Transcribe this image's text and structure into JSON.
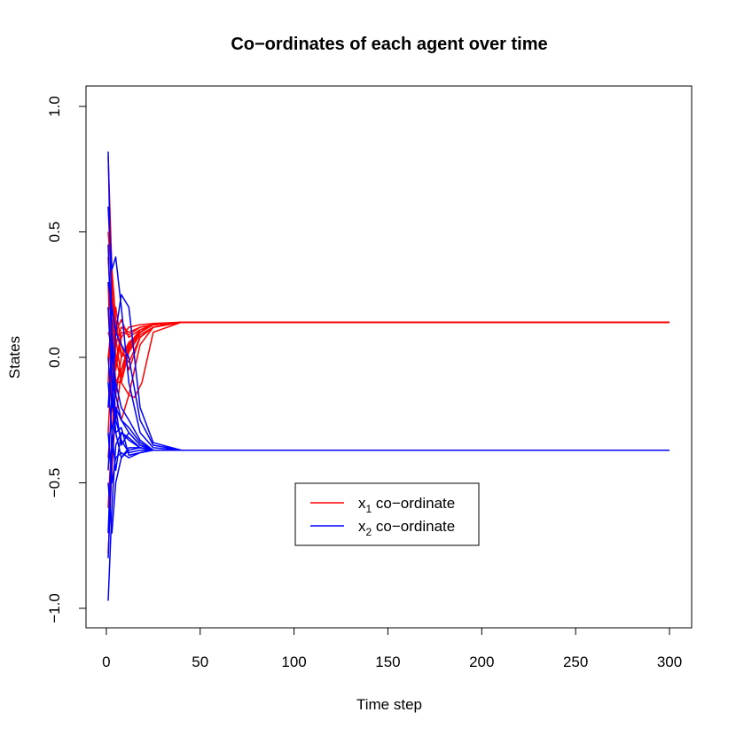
{
  "chart_data": {
    "type": "line",
    "title": "Co−ordinates of each agent over time",
    "xlabel": "Time step",
    "ylabel": "States",
    "xlim": [
      1,
      300
    ],
    "ylim": [
      -1.0,
      1.0
    ],
    "x_ticks": [
      0,
      50,
      100,
      150,
      200,
      250,
      300
    ],
    "x_tick_labels": [
      "0",
      "50",
      "100",
      "150",
      "200",
      "250",
      "300"
    ],
    "y_ticks": [
      -1.0,
      -0.5,
      0.0,
      0.5,
      1.0
    ],
    "y_tick_labels": [
      "−1.0",
      "−0.5",
      "0.0",
      "0.5",
      "1.0"
    ],
    "grid": false,
    "legend": {
      "position": "center-bottom",
      "entries": [
        {
          "label_main": "x",
          "label_sub": "1",
          "label_rest": " co−ordinate",
          "color": "#ff0000"
        },
        {
          "label_main": "x",
          "label_sub": "2",
          "label_rest": " co−ordinate",
          "color": "#0000ff"
        }
      ]
    },
    "series": [
      {
        "color": "#ff0000",
        "x": [
          1,
          3,
          5,
          8,
          12,
          18,
          25,
          40,
          300
        ],
        "y": [
          0.8,
          0.35,
          0.15,
          0.0,
          0.05,
          0.1,
          0.13,
          0.14,
          0.14
        ]
      },
      {
        "color": "#ff0000",
        "x": [
          1,
          3,
          5,
          8,
          12,
          18,
          25,
          40,
          300
        ],
        "y": [
          0.6,
          0.25,
          -0.05,
          0.08,
          0.12,
          0.13,
          0.135,
          0.14,
          0.14
        ]
      },
      {
        "color": "#ff0000",
        "x": [
          1,
          3,
          5,
          8,
          12,
          18,
          25,
          40,
          300
        ],
        "y": [
          0.4,
          0.1,
          0.2,
          0.05,
          -0.05,
          0.08,
          0.12,
          0.14,
          0.14
        ]
      },
      {
        "color": "#ff0000",
        "x": [
          1,
          3,
          5,
          8,
          12,
          18,
          25,
          40,
          300
        ],
        "y": [
          0.2,
          -0.1,
          0.05,
          0.12,
          0.1,
          0.12,
          0.13,
          0.14,
          0.14
        ]
      },
      {
        "color": "#ff0000",
        "x": [
          1,
          3,
          5,
          8,
          12,
          18,
          25,
          40,
          300
        ],
        "y": [
          0.0,
          0.15,
          -0.1,
          -0.05,
          0.03,
          0.1,
          0.13,
          0.14,
          0.14
        ]
      },
      {
        "color": "#ff0000",
        "x": [
          1,
          3,
          5,
          8,
          12,
          18,
          25,
          40,
          300
        ],
        "y": [
          -0.2,
          -0.05,
          0.1,
          0.15,
          0.08,
          0.11,
          0.13,
          0.14,
          0.14
        ]
      },
      {
        "color": "#ff0000",
        "x": [
          1,
          3,
          5,
          8,
          12,
          18,
          25,
          40,
          300
        ],
        "y": [
          -0.4,
          -0.2,
          -0.15,
          0.0,
          0.06,
          0.1,
          0.13,
          0.14,
          0.14
        ]
      },
      {
        "color": "#ff0000",
        "x": [
          1,
          3,
          5,
          8,
          12,
          18,
          25,
          40,
          300
        ],
        "y": [
          -0.6,
          -0.3,
          -0.1,
          -0.1,
          0.02,
          0.09,
          0.12,
          0.14,
          0.14
        ]
      },
      {
        "color": "#ff0000",
        "x": [
          1,
          3,
          5,
          8,
          12,
          18,
          25,
          40,
          300
        ],
        "y": [
          -0.78,
          -0.45,
          -0.2,
          -0.25,
          -0.15,
          0.05,
          0.12,
          0.14,
          0.14
        ]
      },
      {
        "color": "#ff0000",
        "x": [
          1,
          3,
          5,
          8,
          12,
          15,
          19,
          25,
          40,
          300
        ],
        "y": [
          0.5,
          0.3,
          0.0,
          -0.1,
          -0.15,
          -0.16,
          -0.1,
          0.1,
          0.14,
          0.14
        ]
      },
      {
        "color": "#ff0000",
        "x": [
          1,
          3,
          5,
          8,
          12,
          18,
          25,
          40,
          300
        ],
        "y": [
          0.3,
          -0.2,
          -0.25,
          -0.05,
          0.05,
          0.11,
          0.13,
          0.14,
          0.14
        ]
      },
      {
        "color": "#ff0000",
        "x": [
          1,
          3,
          5,
          8,
          12,
          18,
          25,
          40,
          300
        ],
        "y": [
          -0.1,
          0.25,
          0.12,
          0.02,
          -0.02,
          0.08,
          0.12,
          0.14,
          0.14
        ]
      },
      {
        "color": "#ff0000",
        "x": [
          1,
          3,
          5,
          8,
          12,
          18,
          25,
          40,
          300
        ],
        "y": [
          0.1,
          0.05,
          -0.02,
          0.1,
          0.09,
          0.12,
          0.13,
          0.14,
          0.14
        ]
      },
      {
        "color": "#ff0000",
        "x": [
          1,
          3,
          5,
          8,
          12,
          18,
          25,
          40,
          300
        ],
        "y": [
          -0.3,
          0.0,
          0.08,
          -0.08,
          0.04,
          0.1,
          0.13,
          0.14,
          0.14
        ]
      },
      {
        "color": "#0000ff",
        "x": [
          1,
          3,
          5,
          8,
          12,
          18,
          25,
          40,
          300
        ],
        "y": [
          0.82,
          0.1,
          -0.15,
          -0.25,
          -0.3,
          -0.35,
          -0.37,
          -0.37,
          -0.37
        ]
      },
      {
        "color": "#0000ff",
        "x": [
          1,
          3,
          5,
          8,
          12,
          18,
          25,
          40,
          300
        ],
        "y": [
          -0.97,
          -0.6,
          -0.35,
          -0.3,
          -0.33,
          -0.36,
          -0.37,
          -0.37,
          -0.37
        ]
      },
      {
        "color": "#0000ff",
        "x": [
          1,
          3,
          5,
          8,
          12,
          18,
          25,
          40,
          300
        ],
        "y": [
          -0.8,
          -0.4,
          -0.2,
          -0.25,
          -0.28,
          -0.34,
          -0.37,
          -0.37,
          -0.37
        ]
      },
      {
        "color": "#0000ff",
        "x": [
          1,
          3,
          5,
          8,
          12,
          18,
          25,
          40,
          300
        ],
        "y": [
          0.6,
          0.35,
          0.4,
          0.2,
          -0.1,
          -0.3,
          -0.36,
          -0.37,
          -0.37
        ]
      },
      {
        "color": "#0000ff",
        "x": [
          1,
          3,
          5,
          8,
          12,
          18,
          25,
          40,
          300
        ],
        "y": [
          0.3,
          0.2,
          0.1,
          0.05,
          0.0,
          -0.25,
          -0.35,
          -0.37,
          -0.37
        ]
      },
      {
        "color": "#0000ff",
        "x": [
          1,
          3,
          5,
          8,
          12,
          18,
          25,
          40,
          300
        ],
        "y": [
          0.0,
          -0.2,
          0.1,
          0.25,
          0.2,
          -0.2,
          -0.34,
          -0.37,
          -0.37
        ]
      },
      {
        "color": "#0000ff",
        "x": [
          1,
          3,
          5,
          8,
          12,
          18,
          25,
          40,
          300
        ],
        "y": [
          -0.3,
          -0.5,
          -0.4,
          -0.38,
          -0.4,
          -0.38,
          -0.37,
          -0.37,
          -0.37
        ]
      },
      {
        "color": "#0000ff",
        "x": [
          1,
          3,
          5,
          8,
          12,
          18,
          25,
          40,
          300
        ],
        "y": [
          -0.5,
          -0.7,
          -0.5,
          -0.4,
          -0.36,
          -0.36,
          -0.37,
          -0.37,
          -0.37
        ]
      },
      {
        "color": "#0000ff",
        "x": [
          1,
          3,
          5,
          8,
          12,
          18,
          25,
          40,
          300
        ],
        "y": [
          -0.1,
          -0.3,
          -0.2,
          -0.35,
          -0.3,
          -0.35,
          -0.37,
          -0.37,
          -0.37
        ]
      },
      {
        "color": "#0000ff",
        "x": [
          1,
          3,
          5,
          8,
          12,
          18,
          25,
          40,
          300
        ],
        "y": [
          0.2,
          -0.1,
          -0.3,
          -0.28,
          -0.39,
          -0.38,
          -0.37,
          -0.37,
          -0.37
        ]
      },
      {
        "color": "#0000ff",
        "x": [
          1,
          3,
          5,
          8,
          12,
          18,
          25,
          40,
          300
        ],
        "y": [
          -0.7,
          -0.3,
          -0.45,
          -0.3,
          -0.32,
          -0.36,
          -0.37,
          -0.37,
          -0.37
        ]
      },
      {
        "color": "#0000ff",
        "x": [
          1,
          3,
          5,
          8,
          12,
          18,
          25,
          40,
          300
        ],
        "y": [
          0.45,
          0.0,
          -0.1,
          -0.2,
          -0.25,
          -0.33,
          -0.37,
          -0.37,
          -0.37
        ]
      },
      {
        "color": "#0000ff",
        "x": [
          1,
          3,
          5,
          8,
          12,
          18,
          25,
          40,
          300
        ],
        "y": [
          -0.2,
          0.05,
          -0.25,
          -0.33,
          -0.38,
          -0.37,
          -0.37,
          -0.37,
          -0.37
        ]
      },
      {
        "color": "#0000ff",
        "x": [
          1,
          3,
          5,
          8,
          12,
          18,
          25,
          40,
          300
        ],
        "y": [
          -0.45,
          -0.15,
          -0.3,
          -0.4,
          -0.37,
          -0.36,
          -0.37,
          -0.37,
          -0.37
        ]
      }
    ]
  }
}
